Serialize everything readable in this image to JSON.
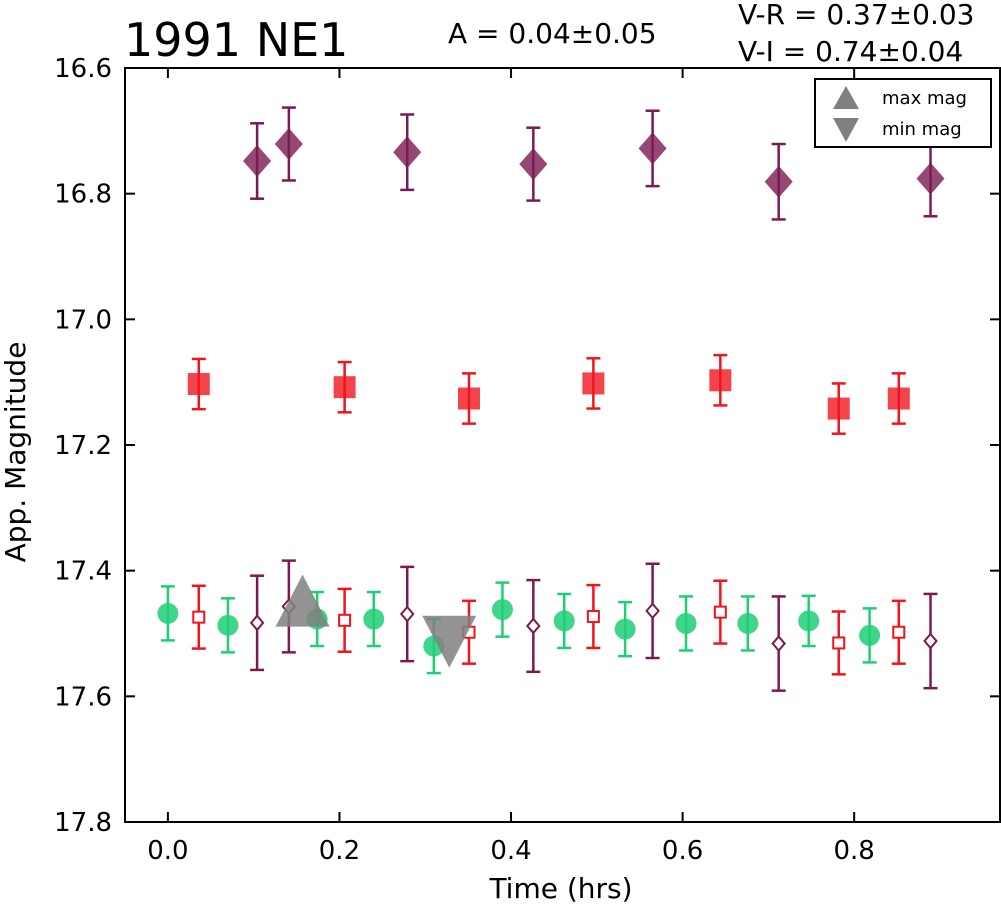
{
  "chart_data": {
    "type": "scatter",
    "title": "1991 NE1",
    "annotations": {
      "amplitude": "A  = 0.04±0.05",
      "vr": "V-R = 0.37±0.03",
      "vi": "V-I  = 0.74±0.04"
    },
    "xlabel": "Time (hrs)",
    "ylabel": "App. Magnitude",
    "xlim": [
      -0.05,
      0.97
    ],
    "ylim": [
      17.8,
      16.6
    ],
    "y_inverted": true,
    "xticks": [
      "0.0",
      "0.2",
      "0.4",
      "0.6",
      "0.8"
    ],
    "yticks": [
      "16.6",
      "16.8",
      "17.0",
      "17.2",
      "17.4",
      "17.6",
      "17.8"
    ],
    "grid": false,
    "legend": {
      "placement": "top-right",
      "entries": [
        {
          "label": "max mag",
          "marker": "triangle-up",
          "color": "#808080"
        },
        {
          "label": "min mag",
          "marker": "triangle-down",
          "color": "#808080"
        }
      ]
    },
    "series": [
      {
        "marker": "diamond-filled",
        "color": "#7b1a52",
        "points": [
          {
            "x": 0.104,
            "y": 16.748,
            "err": 0.06
          },
          {
            "x": 0.141,
            "y": 16.721,
            "err": 0.058
          },
          {
            "x": 0.279,
            "y": 16.734,
            "err": 0.06
          },
          {
            "x": 0.426,
            "y": 16.753,
            "err": 0.058
          },
          {
            "x": 0.565,
            "y": 16.728,
            "err": 0.06
          },
          {
            "x": 0.712,
            "y": 16.781,
            "err": 0.06
          },
          {
            "x": 0.889,
            "y": 16.776,
            "err": 0.06
          }
        ]
      },
      {
        "marker": "square-filled",
        "color": "#f0141e",
        "points": [
          {
            "x": 0.036,
            "y": 17.103,
            "err": 0.04
          },
          {
            "x": 0.206,
            "y": 17.108,
            "err": 0.04
          },
          {
            "x": 0.351,
            "y": 17.126,
            "err": 0.04
          },
          {
            "x": 0.496,
            "y": 17.102,
            "err": 0.04
          },
          {
            "x": 0.644,
            "y": 17.097,
            "err": 0.04
          },
          {
            "x": 0.782,
            "y": 17.142,
            "err": 0.04
          },
          {
            "x": 0.852,
            "y": 17.126,
            "err": 0.04
          }
        ]
      },
      {
        "marker": "circle-filled",
        "color": "#1fcf75",
        "points": [
          {
            "x": 0.0,
            "y": 17.468,
            "err": 0.043
          },
          {
            "x": 0.07,
            "y": 17.487,
            "err": 0.043
          },
          {
            "x": 0.174,
            "y": 17.477,
            "err": 0.043
          },
          {
            "x": 0.24,
            "y": 17.477,
            "err": 0.043
          },
          {
            "x": 0.31,
            "y": 17.52,
            "err": 0.043
          },
          {
            "x": 0.39,
            "y": 17.462,
            "err": 0.043
          },
          {
            "x": 0.462,
            "y": 17.48,
            "err": 0.043
          },
          {
            "x": 0.533,
            "y": 17.493,
            "err": 0.043
          },
          {
            "x": 0.604,
            "y": 17.484,
            "err": 0.043
          },
          {
            "x": 0.676,
            "y": 17.484,
            "err": 0.043
          },
          {
            "x": 0.747,
            "y": 17.48,
            "err": 0.04
          },
          {
            "x": 0.818,
            "y": 17.503,
            "err": 0.043
          }
        ]
      },
      {
        "marker": "square-open",
        "color": "#f0141e",
        "points": [
          {
            "x": 0.036,
            "y": 17.474,
            "err": 0.05
          },
          {
            "x": 0.206,
            "y": 17.479,
            "err": 0.05
          },
          {
            "x": 0.351,
            "y": 17.498,
            "err": 0.05
          },
          {
            "x": 0.496,
            "y": 17.473,
            "err": 0.05
          },
          {
            "x": 0.644,
            "y": 17.466,
            "err": 0.05
          },
          {
            "x": 0.782,
            "y": 17.515,
            "err": 0.05
          },
          {
            "x": 0.852,
            "y": 17.498,
            "err": 0.05
          }
        ]
      },
      {
        "marker": "diamond-open",
        "color": "#7b1a52",
        "points": [
          {
            "x": 0.104,
            "y": 17.483,
            "err": 0.075
          },
          {
            "x": 0.141,
            "y": 17.457,
            "err": 0.073
          },
          {
            "x": 0.279,
            "y": 17.469,
            "err": 0.075
          },
          {
            "x": 0.426,
            "y": 17.488,
            "err": 0.073
          },
          {
            "x": 0.565,
            "y": 17.464,
            "err": 0.075
          },
          {
            "x": 0.712,
            "y": 17.516,
            "err": 0.075
          },
          {
            "x": 0.889,
            "y": 17.512,
            "err": 0.075
          }
        ]
      },
      {
        "marker": "triangle-up",
        "color": "#808080",
        "points": [
          {
            "x": 0.157,
            "y": 17.47
          }
        ]
      },
      {
        "marker": "triangle-down",
        "color": "#808080",
        "points": [
          {
            "x": 0.328,
            "y": 17.51
          }
        ]
      }
    ]
  }
}
